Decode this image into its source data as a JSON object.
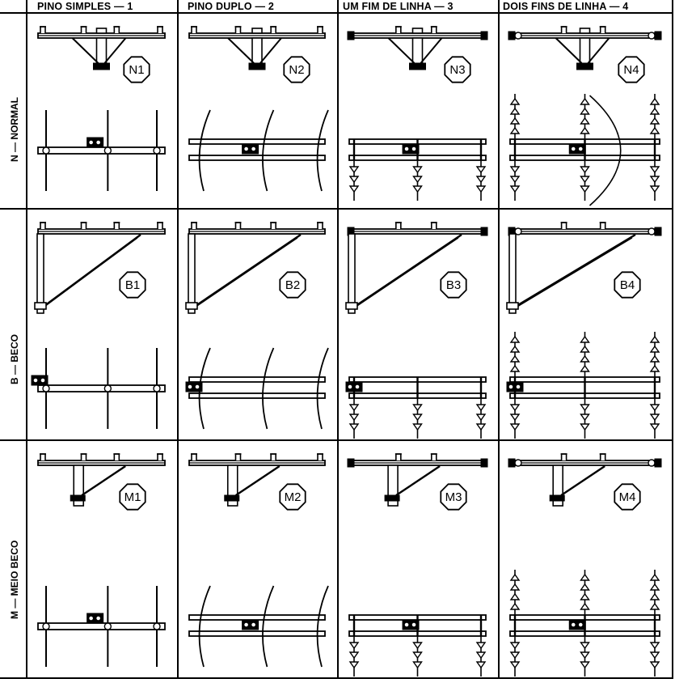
{
  "columns": [
    {
      "label": "PINO SIMPLES — 1"
    },
    {
      "label": "PINO DUPLO — 2"
    },
    {
      "label": "UM FIM DE LINHA — 3"
    },
    {
      "label": "DOIS FINS DE LINHA — 4"
    }
  ],
  "rows": [
    {
      "label": "N — NORMAL",
      "codes": [
        "N1",
        "N2",
        "N3",
        "N4"
      ]
    },
    {
      "label": "B — BECO",
      "codes": [
        "B1",
        "B2",
        "B3",
        "B4"
      ]
    },
    {
      "label": "M — MEIO BECO",
      "codes": [
        "M1",
        "M2",
        "M3",
        "M4"
      ]
    }
  ]
}
